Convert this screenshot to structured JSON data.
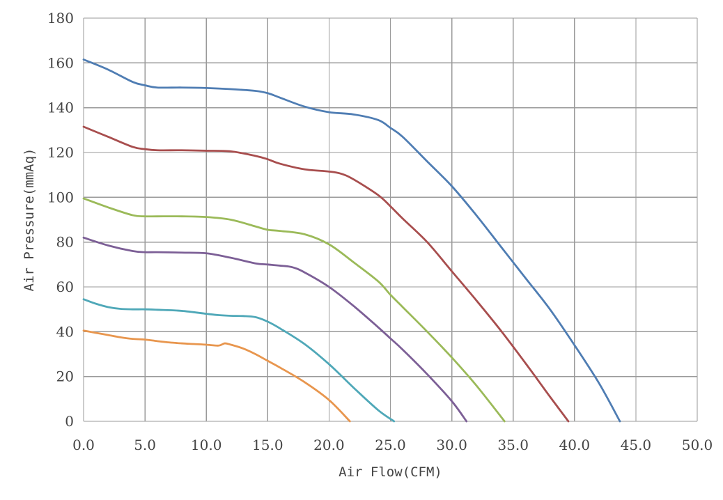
{
  "chart_data": {
    "type": "line",
    "title": "",
    "xlabel": "Air Flow(CFM)",
    "ylabel": "Air Pressure(mmAq)",
    "xlim": [
      0,
      50
    ],
    "ylim": [
      0,
      180
    ],
    "x_ticks": [
      "0.0",
      "5.0",
      "10.0",
      "15.0",
      "20.0",
      "25.0",
      "30.0",
      "35.0",
      "40.0",
      "45.0",
      "50.0"
    ],
    "y_ticks": [
      "0",
      "20",
      "40",
      "60",
      "80",
      "100",
      "120",
      "140",
      "160",
      "180"
    ],
    "grid": true,
    "legend": "none",
    "series": [
      {
        "color": "#4f7db3",
        "points": [
          [
            0,
            161.5
          ],
          [
            2,
            157
          ],
          [
            4,
            151.5
          ],
          [
            5,
            150
          ],
          [
            6,
            149
          ],
          [
            8,
            149
          ],
          [
            10,
            148.8
          ],
          [
            12,
            148.3
          ],
          [
            14,
            147.5
          ],
          [
            15,
            146.5
          ],
          [
            16,
            144.5
          ],
          [
            18,
            140.5
          ],
          [
            20,
            138
          ],
          [
            22,
            137
          ],
          [
            24,
            134.5
          ],
          [
            25,
            131
          ],
          [
            26,
            127
          ],
          [
            28,
            116
          ],
          [
            30,
            105
          ],
          [
            32,
            92
          ],
          [
            34,
            78
          ],
          [
            36,
            64
          ],
          [
            38,
            50
          ],
          [
            40,
            34
          ],
          [
            42,
            17
          ],
          [
            43.7,
            0
          ]
        ]
      },
      {
        "color": "#a84e4e",
        "points": [
          [
            0,
            131.5
          ],
          [
            2,
            127
          ],
          [
            4,
            122.5
          ],
          [
            5,
            121.5
          ],
          [
            6,
            121
          ],
          [
            8,
            121
          ],
          [
            10,
            120.8
          ],
          [
            12,
            120.5
          ],
          [
            14,
            118.5
          ],
          [
            15,
            117
          ],
          [
            16,
            115
          ],
          [
            18,
            112.5
          ],
          [
            20,
            111.5
          ],
          [
            21,
            110.5
          ],
          [
            22,
            108
          ],
          [
            24,
            101
          ],
          [
            25,
            96
          ],
          [
            26,
            90.5
          ],
          [
            28,
            80
          ],
          [
            30,
            67
          ],
          [
            32,
            54
          ],
          [
            34,
            40.5
          ],
          [
            36,
            26
          ],
          [
            38,
            11
          ],
          [
            39.5,
            0
          ]
        ]
      },
      {
        "color": "#9bba59",
        "points": [
          [
            0,
            99.5
          ],
          [
            2,
            95.5
          ],
          [
            4,
            92
          ],
          [
            5,
            91.5
          ],
          [
            6,
            91.5
          ],
          [
            8,
            91.5
          ],
          [
            10,
            91.2
          ],
          [
            12,
            90
          ],
          [
            14,
            87
          ],
          [
            15,
            85.5
          ],
          [
            16,
            85
          ],
          [
            18,
            83.5
          ],
          [
            20,
            79
          ],
          [
            22,
            71
          ],
          [
            24,
            62.5
          ],
          [
            25,
            56.5
          ],
          [
            26,
            51
          ],
          [
            28,
            40
          ],
          [
            30,
            28.5
          ],
          [
            32,
            16
          ],
          [
            34.3,
            0
          ]
        ]
      },
      {
        "color": "#7c5f96",
        "points": [
          [
            0,
            82
          ],
          [
            2,
            78.5
          ],
          [
            4,
            76
          ],
          [
            5,
            75.5
          ],
          [
            6,
            75.5
          ],
          [
            8,
            75.3
          ],
          [
            10,
            75
          ],
          [
            12,
            73
          ],
          [
            14,
            70.5
          ],
          [
            15,
            70
          ],
          [
            16,
            69.5
          ],
          [
            17,
            68.8
          ],
          [
            18,
            66.5
          ],
          [
            20,
            60
          ],
          [
            22,
            51.5
          ],
          [
            24,
            42
          ],
          [
            25,
            37
          ],
          [
            26,
            32
          ],
          [
            28,
            21
          ],
          [
            30,
            9
          ],
          [
            31.2,
            0
          ]
        ]
      },
      {
        "color": "#4fa8b8",
        "points": [
          [
            0,
            54.5
          ],
          [
            1,
            52.5
          ],
          [
            2,
            51
          ],
          [
            3,
            50.2
          ],
          [
            4,
            50
          ],
          [
            5,
            50
          ],
          [
            6,
            49.8
          ],
          [
            8,
            49.3
          ],
          [
            10,
            48
          ],
          [
            11,
            47.4
          ],
          [
            12,
            47.1
          ],
          [
            13,
            47
          ],
          [
            14,
            46.5
          ],
          [
            15,
            44.5
          ],
          [
            16,
            41.5
          ],
          [
            18,
            34.5
          ],
          [
            20,
            25.5
          ],
          [
            22,
            15
          ],
          [
            24,
            5
          ],
          [
            25.3,
            0
          ]
        ]
      },
      {
        "color": "#e8964e",
        "points": [
          [
            0,
            40.5
          ],
          [
            1,
            39.5
          ],
          [
            2,
            38.5
          ],
          [
            3,
            37.5
          ],
          [
            4,
            36.8
          ],
          [
            5,
            36.5
          ],
          [
            6,
            35.8
          ],
          [
            7,
            35.2
          ],
          [
            8,
            34.8
          ],
          [
            9,
            34.5
          ],
          [
            10,
            34.2
          ],
          [
            11,
            33.8
          ],
          [
            11.5,
            34.8
          ],
          [
            12,
            34.2
          ],
          [
            13,
            32.5
          ],
          [
            14,
            30
          ],
          [
            15,
            27
          ],
          [
            16,
            24
          ],
          [
            18,
            17.5
          ],
          [
            20,
            9.5
          ],
          [
            21.7,
            0
          ]
        ]
      }
    ]
  }
}
